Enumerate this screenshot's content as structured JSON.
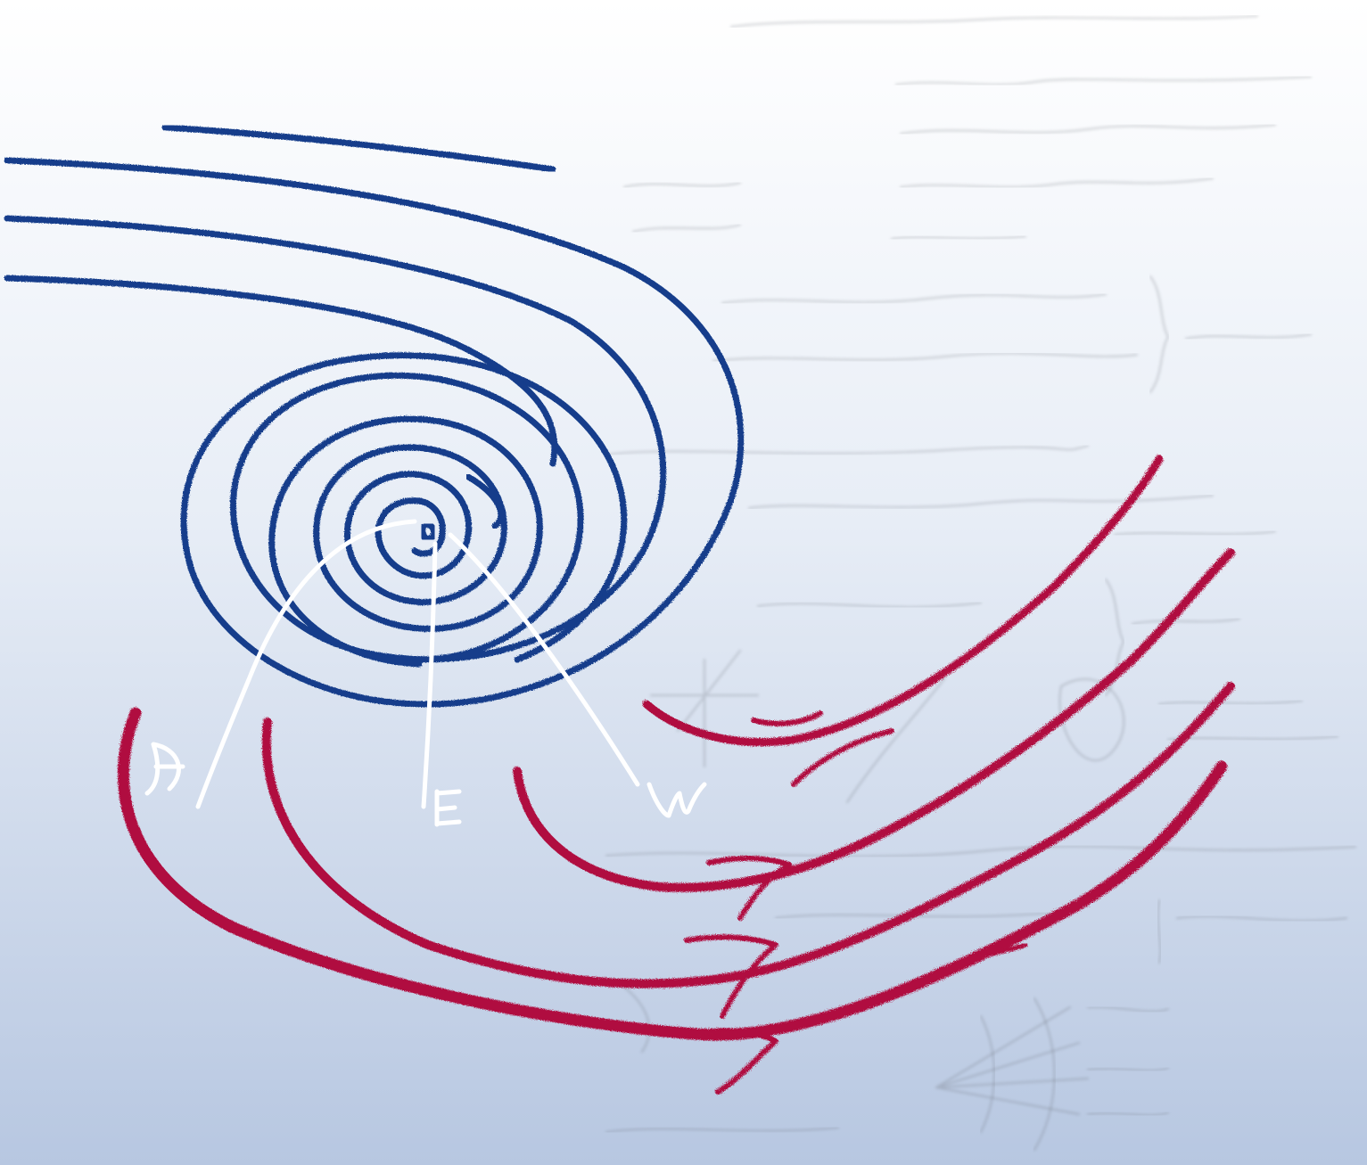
{
  "illustration": {
    "colors": {
      "background_top": "#ffffff",
      "background_bottom": "#b7c7e1",
      "spiral_blue": "#133e8b",
      "strokes_red": "#b0103f",
      "chalk_white": "#ffffff",
      "handwriting_gray": "#6a6f78"
    },
    "elements": [
      "blue-spiral",
      "red-curved-strokes",
      "white-chalk-lines",
      "faded-handwritten-notes"
    ]
  }
}
